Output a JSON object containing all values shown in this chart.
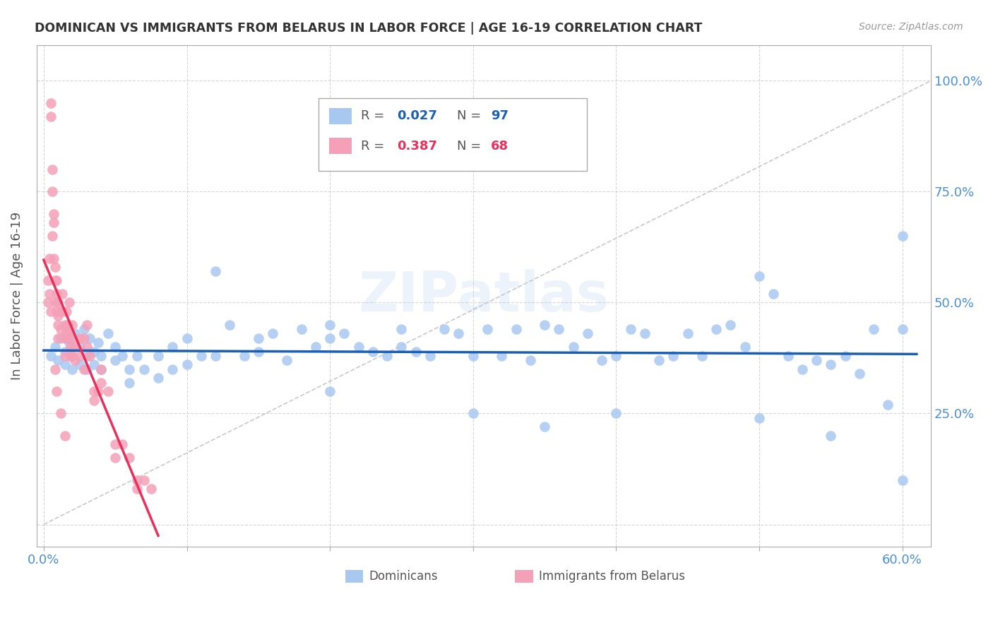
{
  "title": "DOMINICAN VS IMMIGRANTS FROM BELARUS IN LABOR FORCE | AGE 16-19 CORRELATION CHART",
  "source": "Source: ZipAtlas.com",
  "ylabel": "In Labor Force | Age 16-19",
  "xlim": [
    -0.005,
    0.62
  ],
  "ylim": [
    -0.05,
    1.08
  ],
  "blue_color": "#A8C8F0",
  "pink_color": "#F4A0B8",
  "trend_blue": "#1A5FB4",
  "trend_pink": "#E8305A",
  "grid_color": "#CCCCCC",
  "axis_label_color": "#4A90D9",
  "watermark": "ZIPatlas",
  "blue_scatter_x": [
    0.005,
    0.008,
    0.01,
    0.012,
    0.015,
    0.015,
    0.018,
    0.02,
    0.02,
    0.022,
    0.025,
    0.025,
    0.028,
    0.03,
    0.03,
    0.032,
    0.035,
    0.035,
    0.038,
    0.04,
    0.04,
    0.045,
    0.05,
    0.05,
    0.055,
    0.06,
    0.06,
    0.065,
    0.07,
    0.08,
    0.08,
    0.09,
    0.09,
    0.1,
    0.1,
    0.11,
    0.12,
    0.12,
    0.13,
    0.14,
    0.15,
    0.15,
    0.16,
    0.17,
    0.18,
    0.19,
    0.2,
    0.2,
    0.21,
    0.22,
    0.23,
    0.24,
    0.25,
    0.25,
    0.26,
    0.27,
    0.28,
    0.29,
    0.3,
    0.31,
    0.32,
    0.33,
    0.34,
    0.35,
    0.36,
    0.37,
    0.38,
    0.39,
    0.4,
    0.41,
    0.42,
    0.43,
    0.44,
    0.45,
    0.46,
    0.47,
    0.48,
    0.49,
    0.5,
    0.51,
    0.52,
    0.53,
    0.54,
    0.55,
    0.56,
    0.57,
    0.58,
    0.59,
    0.6,
    0.6,
    0.2,
    0.3,
    0.35,
    0.4,
    0.5,
    0.55,
    0.6
  ],
  "blue_scatter_y": [
    0.38,
    0.4,
    0.37,
    0.42,
    0.39,
    0.36,
    0.41,
    0.38,
    0.35,
    0.43,
    0.4,
    0.36,
    0.44,
    0.38,
    0.35,
    0.42,
    0.39,
    0.36,
    0.41,
    0.38,
    0.35,
    0.43,
    0.4,
    0.37,
    0.38,
    0.35,
    0.32,
    0.38,
    0.35,
    0.38,
    0.33,
    0.4,
    0.35,
    0.42,
    0.36,
    0.38,
    0.57,
    0.38,
    0.45,
    0.38,
    0.42,
    0.39,
    0.43,
    0.37,
    0.44,
    0.4,
    0.45,
    0.42,
    0.43,
    0.4,
    0.39,
    0.38,
    0.44,
    0.4,
    0.39,
    0.38,
    0.44,
    0.43,
    0.38,
    0.44,
    0.38,
    0.44,
    0.37,
    0.45,
    0.44,
    0.4,
    0.43,
    0.37,
    0.38,
    0.44,
    0.43,
    0.37,
    0.38,
    0.43,
    0.38,
    0.44,
    0.45,
    0.4,
    0.56,
    0.52,
    0.38,
    0.35,
    0.37,
    0.36,
    0.38,
    0.34,
    0.44,
    0.27,
    0.65,
    0.44,
    0.3,
    0.25,
    0.22,
    0.25,
    0.24,
    0.2,
    0.1
  ],
  "pink_scatter_x": [
    0.003,
    0.003,
    0.004,
    0.004,
    0.005,
    0.005,
    0.005,
    0.006,
    0.006,
    0.006,
    0.007,
    0.007,
    0.007,
    0.008,
    0.008,
    0.008,
    0.009,
    0.009,
    0.009,
    0.01,
    0.01,
    0.01,
    0.01,
    0.012,
    0.012,
    0.013,
    0.013,
    0.015,
    0.015,
    0.015,
    0.016,
    0.016,
    0.017,
    0.017,
    0.018,
    0.018,
    0.019,
    0.019,
    0.02,
    0.02,
    0.02,
    0.022,
    0.022,
    0.025,
    0.025,
    0.028,
    0.028,
    0.03,
    0.03,
    0.032,
    0.035,
    0.035,
    0.038,
    0.04,
    0.04,
    0.045,
    0.05,
    0.05,
    0.055,
    0.06,
    0.065,
    0.065,
    0.07,
    0.075,
    0.008,
    0.009,
    0.012,
    0.015
  ],
  "pink_scatter_y": [
    0.55,
    0.5,
    0.6,
    0.52,
    0.95,
    0.92,
    0.48,
    0.8,
    0.75,
    0.65,
    0.7,
    0.68,
    0.6,
    0.58,
    0.55,
    0.5,
    0.55,
    0.52,
    0.48,
    0.5,
    0.47,
    0.45,
    0.42,
    0.48,
    0.44,
    0.52,
    0.48,
    0.45,
    0.42,
    0.38,
    0.48,
    0.43,
    0.45,
    0.42,
    0.5,
    0.43,
    0.4,
    0.38,
    0.45,
    0.42,
    0.38,
    0.4,
    0.37,
    0.42,
    0.38,
    0.42,
    0.35,
    0.45,
    0.4,
    0.38,
    0.3,
    0.28,
    0.3,
    0.35,
    0.32,
    0.3,
    0.18,
    0.15,
    0.18,
    0.15,
    0.1,
    0.08,
    0.1,
    0.08,
    0.35,
    0.3,
    0.25,
    0.2
  ]
}
